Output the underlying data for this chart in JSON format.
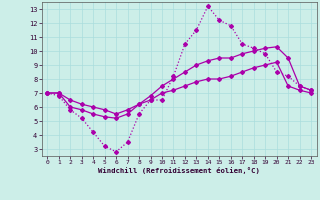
{
  "xlabel": "Windchill (Refroidissement éolien,°C)",
  "bg_color": "#cceee8",
  "line_color": "#aa00aa",
  "grid_color": "#aadddd",
  "xlim": [
    -0.5,
    23.5
  ],
  "ylim": [
    2.5,
    13.5
  ],
  "xticks": [
    0,
    1,
    2,
    3,
    4,
    5,
    6,
    7,
    8,
    9,
    10,
    11,
    12,
    13,
    14,
    15,
    16,
    17,
    18,
    19,
    20,
    21,
    22,
    23
  ],
  "yticks": [
    3,
    4,
    5,
    6,
    7,
    8,
    9,
    10,
    11,
    12,
    13
  ],
  "series1_x": [
    0,
    1,
    2,
    3,
    4,
    5,
    6,
    7,
    8,
    9,
    10,
    11,
    12,
    13,
    14,
    15,
    16,
    17,
    18,
    19,
    20,
    21,
    22,
    23
  ],
  "series1_y": [
    7.0,
    6.8,
    5.8,
    5.2,
    4.2,
    3.2,
    2.8,
    3.5,
    5.5,
    6.5,
    6.5,
    8.2,
    10.5,
    11.5,
    13.2,
    12.2,
    11.8,
    10.5,
    10.2,
    9.8,
    8.5,
    8.2,
    7.5,
    7.2
  ],
  "series2_x": [
    0,
    1,
    2,
    3,
    4,
    5,
    6,
    7,
    8,
    9,
    10,
    11,
    12,
    13,
    14,
    15,
    16,
    17,
    18,
    19,
    20,
    21,
    22,
    23
  ],
  "series2_y": [
    7.0,
    7.0,
    6.0,
    5.8,
    5.5,
    5.3,
    5.2,
    5.5,
    6.2,
    6.8,
    7.5,
    8.0,
    8.5,
    9.0,
    9.3,
    9.5,
    9.5,
    9.8,
    10.0,
    10.2,
    10.3,
    9.5,
    7.5,
    7.2
  ],
  "series3_x": [
    0,
    1,
    2,
    3,
    4,
    5,
    6,
    7,
    8,
    9,
    10,
    11,
    12,
    13,
    14,
    15,
    16,
    17,
    18,
    19,
    20,
    21,
    22,
    23
  ],
  "series3_y": [
    7.0,
    7.0,
    6.5,
    6.2,
    6.0,
    5.8,
    5.5,
    5.8,
    6.2,
    6.5,
    7.0,
    7.2,
    7.5,
    7.8,
    8.0,
    8.0,
    8.2,
    8.5,
    8.8,
    9.0,
    9.2,
    7.5,
    7.2,
    7.0
  ]
}
